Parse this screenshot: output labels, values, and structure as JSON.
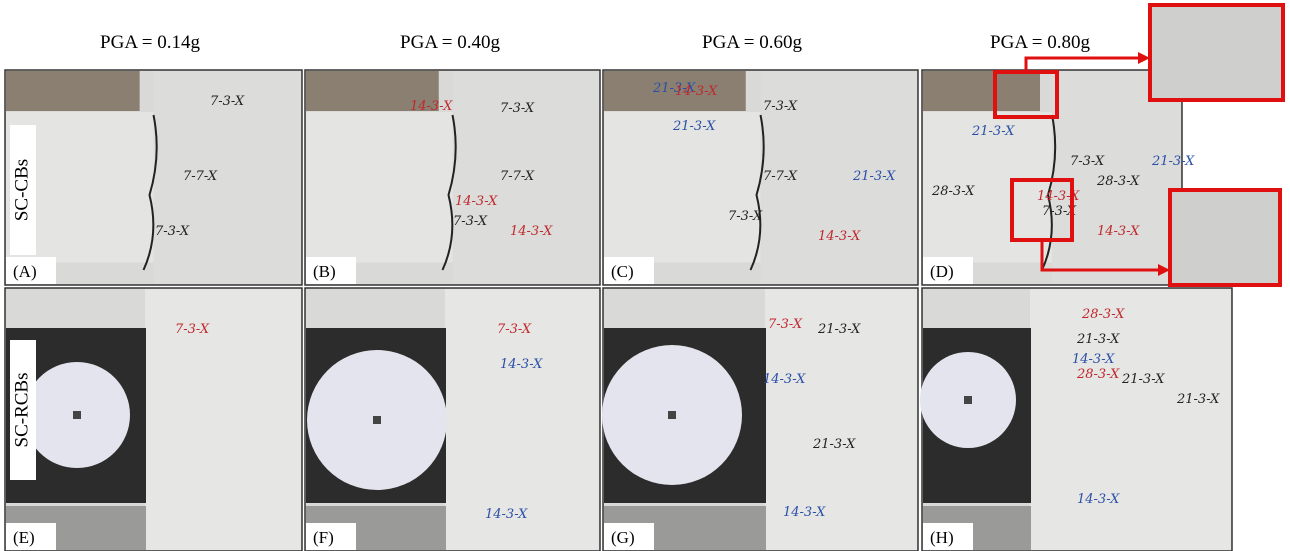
{
  "pga_labels": [
    "PGA = 0.14g",
    "PGA = 0.40g",
    "PGA = 0.60g",
    "PGA = 0.80g"
  ],
  "row_labels": [
    "SC-CBs",
    "SC-RCBs"
  ],
  "panels": [
    {
      "label": "(A)",
      "cracks": [
        {
          "text": "7-3-X",
          "color": "#222"
        },
        {
          "text": "7-7-X",
          "color": "#222"
        },
        {
          "text": "7-3-X",
          "color": "#222"
        }
      ]
    },
    {
      "label": "(B)",
      "cracks": [
        {
          "text": "14-3-X",
          "color": "#c0282d"
        },
        {
          "text": "7-3-X",
          "color": "#222"
        },
        {
          "text": "7-7-X",
          "color": "#222"
        },
        {
          "text": "14-3-X",
          "color": "#c0282d"
        },
        {
          "text": "7-3-X",
          "color": "#222"
        },
        {
          "text": "14-3-X",
          "color": "#c0282d"
        }
      ]
    },
    {
      "label": "(C)",
      "cracks": [
        {
          "text": "21-3-X",
          "color": "#2a4fa8"
        },
        {
          "text": "14-3-X",
          "color": "#c0282d"
        },
        {
          "text": "7-3-X",
          "color": "#222"
        },
        {
          "text": "21-3-X",
          "color": "#2a4fa8"
        },
        {
          "text": "7-7-X",
          "color": "#222"
        },
        {
          "text": "21-3-X",
          "color": "#2a4fa8"
        },
        {
          "text": "7-3-X",
          "color": "#222"
        },
        {
          "text": "14-3-X",
          "color": "#c0282d"
        }
      ]
    },
    {
      "label": "(D)",
      "cracks": [
        {
          "text": "28-3-X",
          "color": "#222"
        },
        {
          "text": "21-3-X",
          "color": "#2a4fa8"
        },
        {
          "text": "7-3-X",
          "color": "#222"
        },
        {
          "text": "21-3-X",
          "color": "#2a4fa8"
        },
        {
          "text": "28-3-X",
          "color": "#222"
        },
        {
          "text": "14-3-X",
          "color": "#c0282d"
        },
        {
          "text": "7-3-X",
          "color": "#222"
        },
        {
          "text": "14-3-X",
          "color": "#c0282d"
        }
      ]
    },
    {
      "label": "(E)",
      "cracks": [
        {
          "text": "7-3-X",
          "color": "#c0282d"
        }
      ]
    },
    {
      "label": "(F)",
      "cracks": [
        {
          "text": "7-3-X",
          "color": "#c0282d"
        },
        {
          "text": "14-3-X",
          "color": "#2a4fa8"
        },
        {
          "text": "14-3-X",
          "color": "#2a4fa8"
        }
      ]
    },
    {
      "label": "(G)",
      "cracks": [
        {
          "text": "7-3-X",
          "color": "#c0282d"
        },
        {
          "text": "21-3-X",
          "color": "#222"
        },
        {
          "text": "14-3-X",
          "color": "#2a4fa8"
        },
        {
          "text": "21-3-X",
          "color": "#222"
        },
        {
          "text": "14-3-X",
          "color": "#2a4fa8"
        }
      ]
    },
    {
      "label": "(H)",
      "cracks": [
        {
          "text": "28-3-X",
          "color": "#c0282d"
        },
        {
          "text": "21-3-X",
          "color": "#222"
        },
        {
          "text": "14-3-X",
          "color": "#2a4fa8"
        },
        {
          "text": "28-3-X",
          "color": "#c0282d"
        },
        {
          "text": "21-3-X",
          "color": "#222"
        },
        {
          "text": "21-3-X",
          "color": "#222"
        },
        {
          "text": "14-3-X",
          "color": "#2a4fa8"
        }
      ]
    }
  ]
}
